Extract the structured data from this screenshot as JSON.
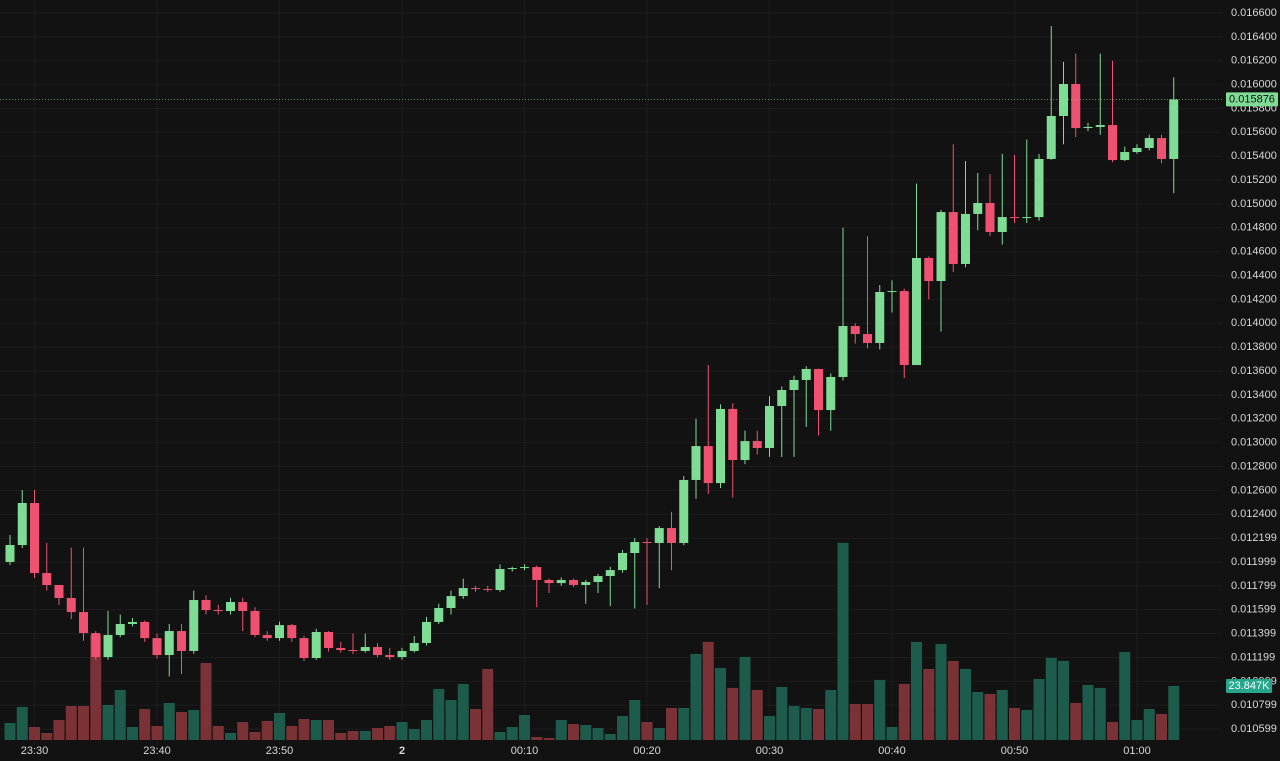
{
  "chart_data": {
    "type": "candlestick",
    "categories": [
      null,
      null,
      "23:30",
      null,
      null,
      null,
      null,
      null,
      null,
      null,
      null,
      null,
      "23:40",
      null,
      null,
      null,
      null,
      null,
      null,
      null,
      null,
      null,
      "23:50",
      null,
      null,
      null,
      null,
      null,
      null,
      null,
      null,
      null,
      "2",
      null,
      null,
      null,
      null,
      null,
      null,
      null,
      null,
      null,
      "00:10",
      null,
      null,
      null,
      null,
      null,
      null,
      null,
      null,
      null,
      "00:20",
      null,
      null,
      null,
      null,
      null,
      null,
      null,
      null,
      null,
      "00:30",
      null,
      null,
      null,
      null,
      null,
      null,
      null,
      null,
      null,
      "00:40",
      null,
      null,
      null,
      null,
      null,
      null,
      null,
      null,
      null,
      "00:50",
      null,
      null,
      null,
      null,
      null,
      null,
      null,
      null,
      null,
      "01:00",
      null,
      null,
      null
    ],
    "open": [
      0.012,
      0.012142,
      0.012494,
      0.011907,
      0.011807,
      0.011698,
      0.01158,
      0.011404,
      0.011203,
      0.011388,
      0.01148,
      0.011497,
      0.011362,
      0.01122,
      0.011421,
      0.011254,
      0.011681,
      0.011597,
      0.011589,
      0.011664,
      0.011589,
      0.011388,
      0.011362,
      0.011471,
      0.011362,
      0.011195,
      0.011413,
      0.011279,
      0.011262,
      0.011254,
      0.011287,
      0.01122,
      0.011203,
      0.011254,
      0.011321,
      0.011497,
      0.011614,
      0.011714,
      0.011781,
      0.011773,
      0.011765,
      0.011941,
      0.011949,
      0.011957,
      0.011849,
      0.011823,
      0.011849,
      0.011807,
      0.011832,
      0.011882,
      0.011932,
      0.012075,
      0.012167,
      0.012159,
      0.012284,
      0.012159,
      0.012687,
      0.012971,
      0.012661,
      0.013282,
      0.012854,
      0.013013,
      0.012955,
      0.013307,
      0.013441,
      0.013525,
      0.013617,
      0.013273,
      0.01355,
      0.013977,
      0.01391,
      0.013835,
      0.014262,
      0.01427,
      0.01365,
      0.014547,
      0.014354,
      0.014932,
      0.014497,
      0.014916,
      0.015008,
      0.014765,
      0.01489,
      0.014882,
      0.01489,
      0.015377,
      0.015737,
      0.016005,
      0.015636,
      0.015645,
      0.015661,
      0.015368,
      0.015435,
      0.015469,
      0.015552,
      0.015377
    ],
    "high": [
      0.012226,
      0.012603,
      0.012603,
      0.01216,
      0.01178,
      0.01212,
      0.01212,
      0.01142,
      0.01159,
      0.01156,
      0.01153,
      0.01151,
      0.0114,
      0.01148,
      0.01148,
      0.01176,
      0.01172,
      0.01164,
      0.0117,
      0.0117,
      0.01162,
      0.01142,
      0.0115,
      0.01148,
      0.01138,
      0.01144,
      0.01142,
      0.01133,
      0.0114,
      0.0114,
      0.01132,
      0.01128,
      0.01128,
      0.01138,
      0.01154,
      0.01165,
      0.01176,
      0.01186,
      0.0118,
      0.0118,
      0.01198,
      0.01196,
      0.01198,
      0.01197,
      0.01186,
      0.01187,
      0.01186,
      0.01185,
      0.0119,
      0.01196,
      0.0121,
      0.0122,
      0.0122,
      0.0123,
      0.01242,
      0.01272,
      0.0132,
      0.01365,
      0.01332,
      0.01333,
      0.0131,
      0.0131,
      0.01339,
      0.01347,
      0.01356,
      0.01364,
      0.01362,
      0.01358,
      0.0148,
      0.014,
      0.01473,
      0.01432,
      0.01436,
      0.01429,
      0.01517,
      0.01456,
      0.01495,
      0.0155,
      0.01536,
      0.01526,
      0.01525,
      0.01542,
      0.01541,
      0.01554,
      0.01542,
      0.01649,
      0.01619,
      0.01626,
      0.01568,
      0.01626,
      0.0162,
      0.01548,
      0.0155,
      0.01558,
      0.01558,
      0.01606
    ],
    "low": [
      0.011975,
      0.012117,
      0.011866,
      0.01176,
      0.01164,
      0.01152,
      0.01134,
      0.01118,
      0.01118,
      0.01137,
      0.01146,
      0.01133,
      0.01119,
      0.01104,
      0.01106,
      0.01123,
      0.01156,
      0.01156,
      0.01156,
      0.01142,
      0.01137,
      0.01134,
      0.01134,
      0.01133,
      0.01117,
      0.01118,
      0.01125,
      0.01124,
      0.01123,
      0.01124,
      0.0112,
      0.01118,
      0.01118,
      0.01124,
      0.0113,
      0.01148,
      0.01156,
      0.01169,
      0.01175,
      0.01175,
      0.01175,
      0.01192,
      0.01193,
      0.01162,
      0.01174,
      0.0118,
      0.01179,
      0.01165,
      0.01174,
      0.01163,
      0.01191,
      0.01161,
      0.01164,
      0.01178,
      0.01193,
      0.01214,
      0.01253,
      0.01257,
      0.01262,
      0.01254,
      0.01282,
      0.0129,
      0.01288,
      0.01288,
      0.01288,
      0.01313,
      0.01306,
      0.0131,
      0.01352,
      0.01383,
      0.01379,
      0.01378,
      0.01409,
      0.01354,
      0.01365,
      0.0142,
      0.01393,
      0.01443,
      0.01447,
      0.01478,
      0.01473,
      0.01466,
      0.01484,
      0.01484,
      0.01486,
      0.01537,
      0.0155,
      0.01556,
      0.01561,
      0.01558,
      0.01535,
      0.01536,
      0.01542,
      0.01545,
      0.01534,
      0.01509
    ],
    "close": [
      0.012142,
      0.012494,
      0.011907,
      0.011807,
      0.011698,
      0.01158,
      0.011404,
      0.011203,
      0.011388,
      0.01148,
      0.011497,
      0.011362,
      0.01122,
      0.011421,
      0.011254,
      0.011681,
      0.011597,
      0.011589,
      0.011664,
      0.011589,
      0.011388,
      0.011362,
      0.011471,
      0.011362,
      0.011195,
      0.011413,
      0.011279,
      0.011262,
      0.011254,
      0.011287,
      0.01122,
      0.011203,
      0.011254,
      0.011321,
      0.011497,
      0.011614,
      0.011714,
      0.011781,
      0.011773,
      0.011765,
      0.011941,
      0.011949,
      0.011957,
      0.011849,
      0.011823,
      0.011849,
      0.011807,
      0.011832,
      0.011882,
      0.011932,
      0.012075,
      0.012167,
      0.012159,
      0.012284,
      0.012159,
      0.012687,
      0.012971,
      0.012661,
      0.013282,
      0.012854,
      0.013013,
      0.012955,
      0.013307,
      0.013441,
      0.013525,
      0.013617,
      0.013273,
      0.01355,
      0.013977,
      0.01391,
      0.013835,
      0.014262,
      0.01427,
      0.01365,
      0.014547,
      0.014354,
      0.014932,
      0.014497,
      0.014916,
      0.015008,
      0.014765,
      0.01489,
      0.014882,
      0.01489,
      0.015377,
      0.015737,
      0.016005,
      0.015636,
      0.015645,
      0.015661,
      0.015368,
      0.015435,
      0.015469,
      0.015552,
      0.015377,
      0.015876
    ],
    "volume": [
      7507,
      14573,
      5741,
      3091,
      8832,
      15014,
      15014,
      46368,
      15456,
      22080,
      5741,
      13690,
      6182,
      16339,
      12365,
      13248,
      34003,
      6182,
      3091,
      7949,
      3533,
      8390,
      11923,
      6182,
      9274,
      8832,
      8832,
      3091,
      3974,
      3974,
      5299,
      6182,
      7949,
      4858,
      8832,
      22522,
      17664,
      24730,
      13690,
      31354,
      3533,
      5741,
      11040,
      1325,
      883,
      8832,
      7066,
      6624,
      5299,
      2650,
      10598,
      17664,
      7949,
      5299,
      14131,
      14131,
      37978,
      43277,
      31795,
      22963,
      36653,
      22080,
      10598,
      23405,
      15014,
      14131,
      13690,
      22080,
      86995,
      15898,
      15898,
      26496,
      5741,
      24730,
      43277,
      31354,
      42394,
      34886,
      31354,
      21197,
      20314,
      22080,
      14131,
      13248,
      26938,
      36211,
      34886,
      16339,
      24288,
      22963,
      7949,
      38861,
      8832,
      13690,
      11482,
      23847
    ],
    "volume_last_label": "23.847K",
    "ylim": [
      0.010332,
      0.016709
    ],
    "yticks": [
      {
        "value": 0.0166,
        "label": "0.016600"
      },
      {
        "value": 0.0164,
        "label": "0.016400"
      },
      {
        "value": 0.0162,
        "label": "0.016200"
      },
      {
        "value": 0.016,
        "label": "0.016000"
      },
      {
        "value": 0.0158,
        "label": "0.015800"
      },
      {
        "value": 0.0156,
        "label": "0.015600"
      },
      {
        "value": 0.0154,
        "label": "0.015400"
      },
      {
        "value": 0.0152,
        "label": "0.015200"
      },
      {
        "value": 0.015,
        "label": "0.015000"
      },
      {
        "value": 0.0148,
        "label": "0.014800"
      },
      {
        "value": 0.0146,
        "label": "0.014600"
      },
      {
        "value": 0.0144,
        "label": "0.014400"
      },
      {
        "value": 0.0142,
        "label": "0.014200"
      },
      {
        "value": 0.014,
        "label": "0.014000"
      },
      {
        "value": 0.0138,
        "label": "0.013800"
      },
      {
        "value": 0.0136,
        "label": "0.013600"
      },
      {
        "value": 0.0134,
        "label": "0.013400"
      },
      {
        "value": 0.0132,
        "label": "0.013200"
      },
      {
        "value": 0.013,
        "label": "0.013000"
      },
      {
        "value": 0.0128,
        "label": "0.012800"
      },
      {
        "value": 0.0126,
        "label": "0.012600"
      },
      {
        "value": 0.0124,
        "label": "0.012400"
      },
      0.012199,
      0.011999,
      0.011799,
      0.011599,
      0.011399,
      0.011199,
      0.010999,
      0.010799,
      0.010599
    ],
    "volume_ylim": [
      0,
      90000
    ],
    "grid": true,
    "up_color": "#7fdc94",
    "down_color": "#ef5270",
    "volume_up_color": "#1d5c4c",
    "volume_down_color": "#7b3236",
    "last_price_color": "#7fdc94",
    "last_volume_color": "#26a68c"
  }
}
